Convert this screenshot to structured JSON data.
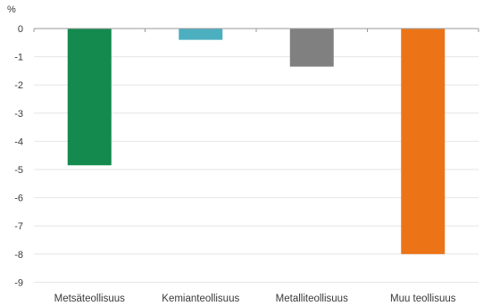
{
  "chart_data": {
    "type": "bar",
    "ylabel": "%",
    "categories": [
      "Metsäteollisuus",
      "Kemianteollisuus",
      "Metalliteollisuus",
      "Muu teollisuus"
    ],
    "values": [
      -4.85,
      -0.4,
      -1.35,
      -8.0
    ],
    "colors": [
      "#148a4e",
      "#4bafc0",
      "#808080",
      "#ec7417"
    ],
    "ylim": [
      -9,
      0
    ],
    "yticks": [
      "0",
      "-1",
      "-2",
      "-3",
      "-4",
      "-5",
      "-6",
      "-7",
      "-8",
      "-9"
    ],
    "grid": true,
    "legend": "none"
  }
}
